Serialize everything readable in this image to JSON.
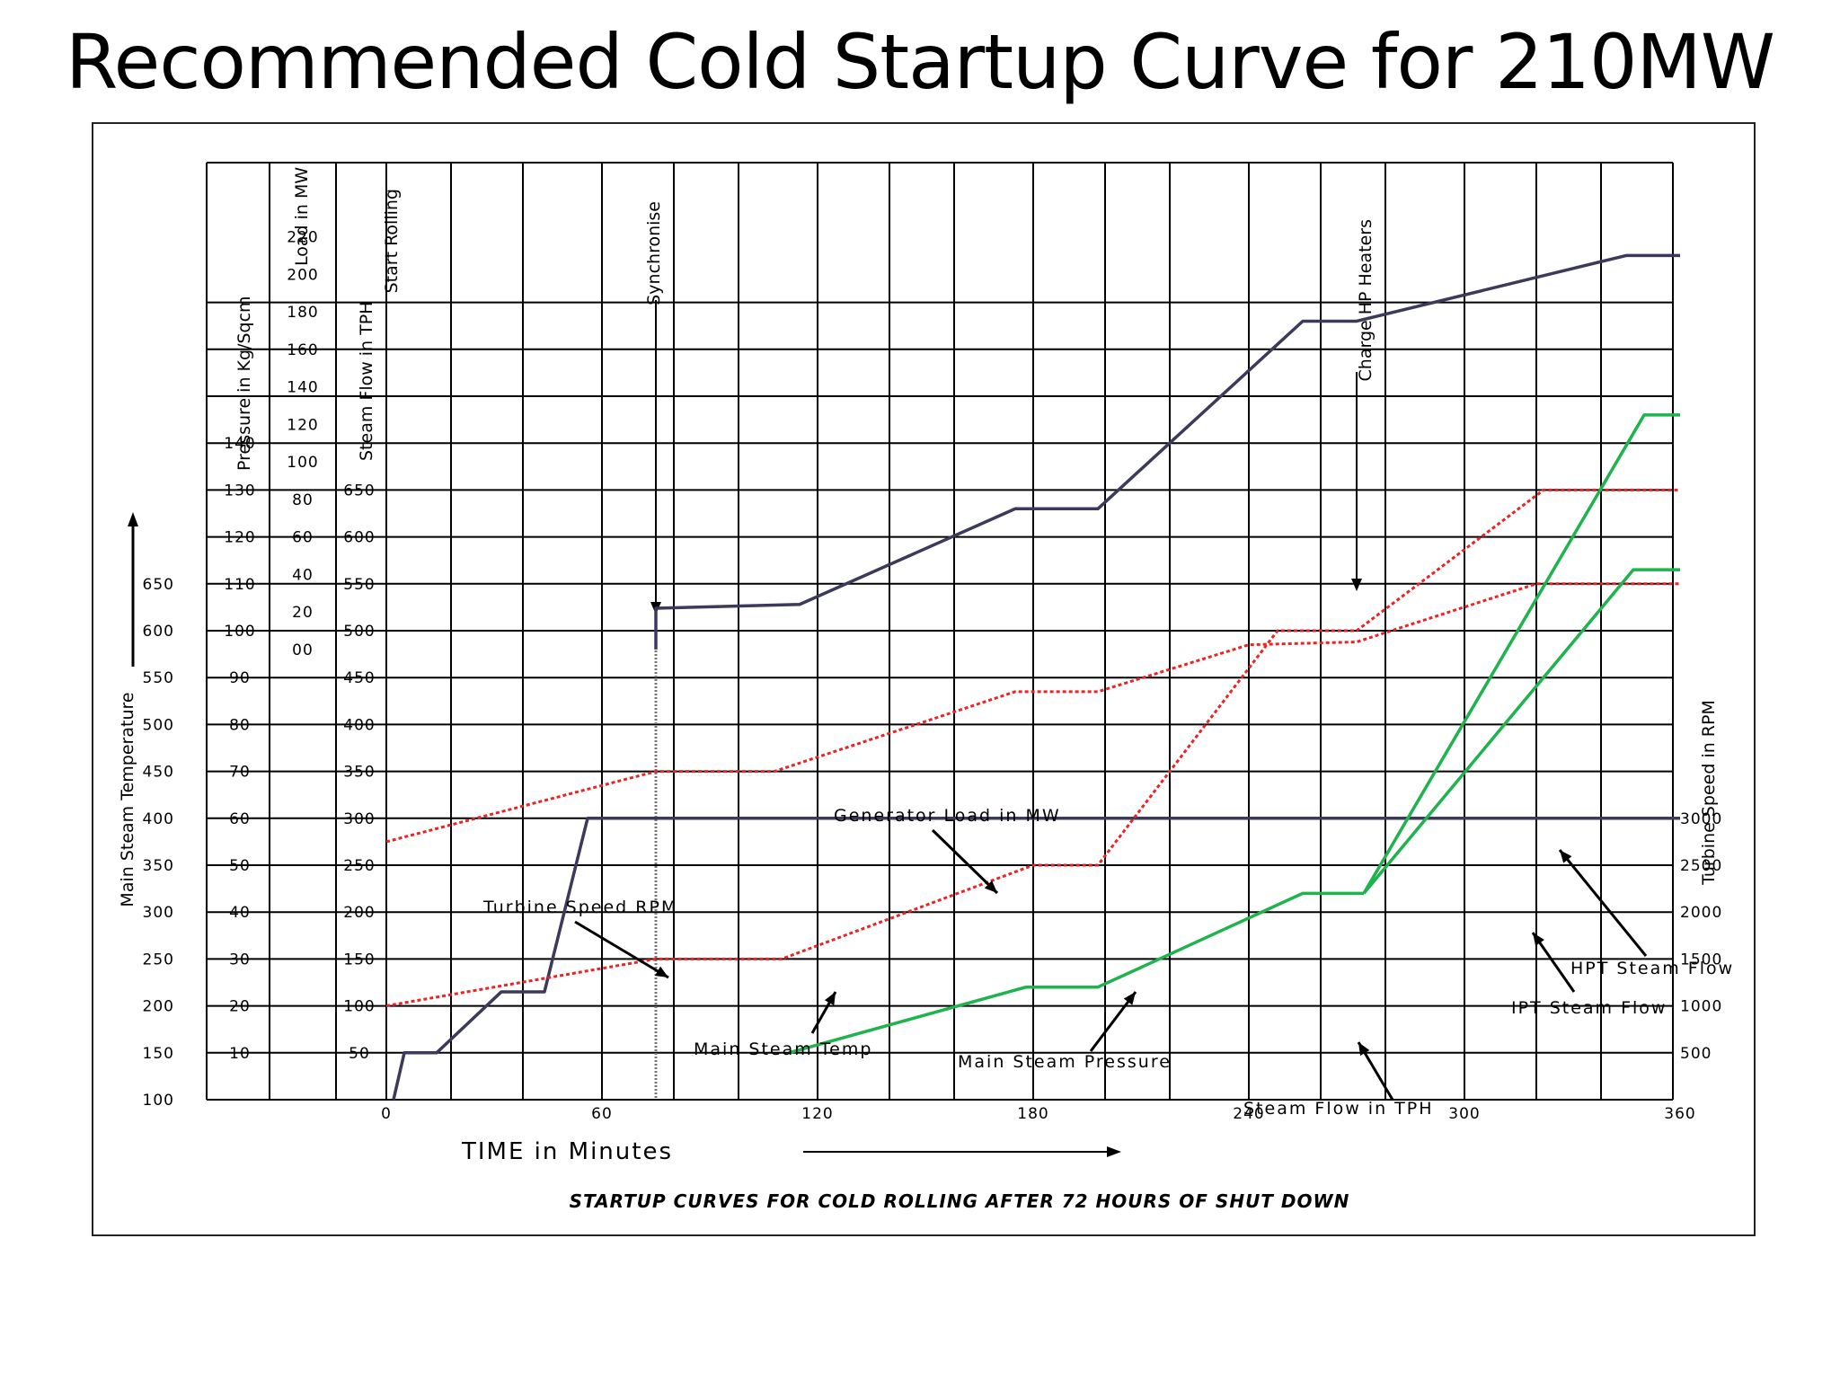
{
  "title": "Recommended Cold Startup Curve for 210MW",
  "chart_data": {
    "type": "line",
    "title": "Recommended Cold Startup Curve for 210MW",
    "xlabel": "TIME in Minutes",
    "caption": "STARTUP CURVES FOR COLD ROLLING AFTER 72 HOURS OF SHUT DOWN",
    "xlim": [
      -25,
      360
    ],
    "x_ticks": [
      "0",
      "60",
      "120",
      "180",
      "240",
      "300",
      "360"
    ],
    "grid": true,
    "axes": {
      "temperature": {
        "label": "Main Steam Temperature",
        "ticks": [
          "100",
          "150",
          "200",
          "250",
          "300",
          "350",
          "400",
          "450",
          "500",
          "550",
          "600",
          "650"
        ],
        "range": [
          100,
          1100
        ]
      },
      "pressure": {
        "label": "Pressure in Kg/Sqcm",
        "ticks": [
          "10",
          "20",
          "30",
          "40",
          "50",
          "60",
          "70",
          "80",
          "90",
          "100",
          "110",
          "120",
          "130",
          "140"
        ],
        "range": [
          0,
          200
        ]
      },
      "load": {
        "label": "Load in MW",
        "ticks": [
          "00",
          "20",
          "40",
          "60",
          "80",
          "100",
          "120",
          "140",
          "160",
          "180",
          "200",
          "220"
        ],
        "range": [
          -240,
          260
        ]
      },
      "steam_flow": {
        "label": "Steam Flow in TPH",
        "ticks": [
          "50",
          "100",
          "150",
          "200",
          "250",
          "300",
          "350",
          "400",
          "450",
          "500",
          "550",
          "600",
          "650"
        ],
        "range": [
          0,
          1000
        ]
      },
      "speed": {
        "label": "Turbine Speed in RPM",
        "ticks": [
          "500",
          "1000",
          "1500",
          "2000",
          "2500",
          "3000"
        ],
        "range": [
          0,
          10000
        ]
      }
    },
    "markers": [
      {
        "label": "Start Rolling",
        "x": 0
      },
      {
        "label": "Synchronise",
        "x": 75
      },
      {
        "label": "Charge HP Heaters",
        "x": 270
      }
    ],
    "series": [
      {
        "name": "Turbine Speed RPM",
        "axis": "speed",
        "color": "#3c3a5a",
        "style": "solid",
        "x": [
          2,
          5,
          14,
          32,
          44,
          56,
          360
        ],
        "y": [
          0,
          500,
          500,
          1150,
          1150,
          3000,
          3000
        ]
      },
      {
        "name": "Generator Load in MW",
        "axis": "load",
        "color": "#3c3a5a",
        "style": "solid",
        "x": [
          75,
          75,
          115,
          175,
          198,
          255,
          270,
          345,
          360
        ],
        "y": [
          0,
          22,
          24,
          75,
          75,
          175,
          175,
          210,
          210
        ]
      },
      {
        "name": "Main Steam Temp",
        "axis": "temperature",
        "color": "#ee2222",
        "style": "dotted",
        "x": [
          0,
          75,
          108,
          175,
          198,
          240,
          270,
          320,
          360
        ],
        "y": [
          375,
          450,
          450,
          535,
          535,
          585,
          588,
          650,
          650
        ]
      },
      {
        "name": "Main Steam Pressure",
        "axis": "pressure",
        "color": "#ee2222",
        "style": "dotted",
        "x": [
          0,
          75,
          110,
          180,
          198,
          248,
          270,
          322,
          360
        ],
        "y": [
          20,
          30,
          30,
          50,
          50,
          100,
          100,
          130,
          130
        ]
      },
      {
        "name": "Steam Flow in TPH",
        "axis": "steam_flow",
        "color": "#1db34d",
        "style": "solid",
        "x": [
          112,
          178,
          198,
          255,
          272
        ],
        "y": [
          50,
          120,
          120,
          220,
          220
        ]
      },
      {
        "name": "HPT Steam Flow",
        "axis": "steam_flow",
        "color": "#1db34d",
        "style": "solid",
        "x": [
          272,
          350,
          360
        ],
        "y": [
          220,
          730,
          730
        ]
      },
      {
        "name": "IPT Steam Flow",
        "axis": "steam_flow",
        "color": "#1db34d",
        "style": "solid",
        "x": [
          272,
          347,
          360
        ],
        "y": [
          220,
          565,
          565
        ]
      }
    ],
    "annotations": [
      {
        "text": "Turbine Speed RPM",
        "series": "Turbine Speed RPM"
      },
      {
        "text": "Generator Load in MW",
        "series": "Generator Load in MW"
      },
      {
        "text": "Main Steam Temp",
        "series": "Main Steam Temp"
      },
      {
        "text": "Main Steam Pressure",
        "series": "Main Steam Pressure"
      },
      {
        "text": "Steam Flow in TPH",
        "series": "Steam Flow in TPH"
      },
      {
        "text": "HPT Steam Flow",
        "series": "HPT Steam Flow"
      },
      {
        "text": "IPT Steam Flow",
        "series": "IPT Steam Flow"
      }
    ]
  }
}
